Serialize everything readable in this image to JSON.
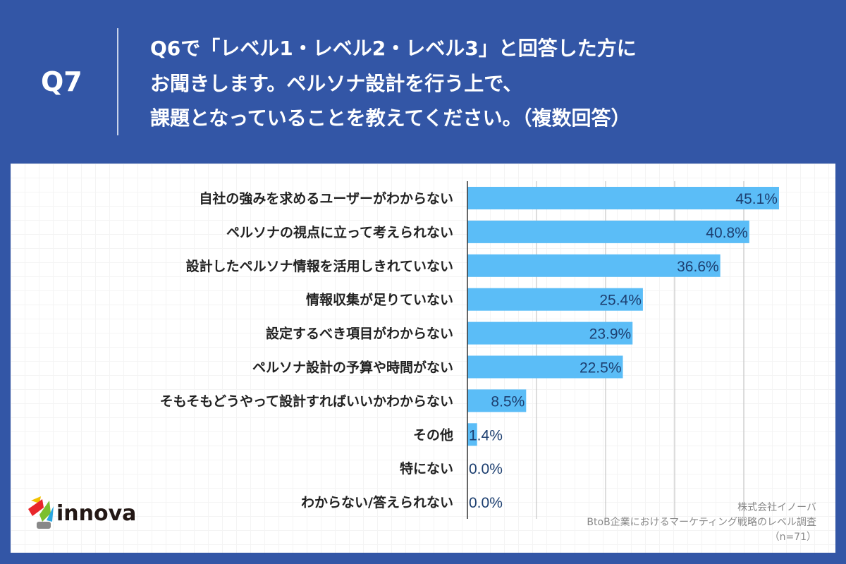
{
  "header": {
    "question_number": "Q7",
    "title": "Q6で「レベル1・レベル2・レベル3」と回答した方に\nお聞きします。ペルソナ設計を行う上で、\n課題となっていることを教えてください。（複数回答）"
  },
  "chart_data": {
    "type": "bar",
    "orientation": "horizontal",
    "categories": [
      "自社の強みを求めるユーザーがわからない",
      "ペルソナの視点に立って考えられない",
      "設計したペルソナ情報を活用しきれていない",
      "情報収集が足りていない",
      "設定するべき項目がわからない",
      "ペルソナ設計の予算や時間がない",
      "そもそもどうやって設計すればいいかわからない",
      "その他",
      "特にない",
      "わからない/答えられない"
    ],
    "values": [
      45.1,
      40.8,
      36.6,
      25.4,
      23.9,
      22.5,
      8.5,
      1.4,
      0.0,
      0.0
    ],
    "value_labels": [
      "45.1%",
      "40.8%",
      "36.6%",
      "25.4%",
      "23.9%",
      "22.5%",
      "8.5%",
      "1.4%",
      "0.0%",
      "0.0%"
    ],
    "xlim": [
      0,
      50
    ],
    "grid": true,
    "bar_color": "#5bbdf7"
  },
  "footer": {
    "company": "株式会社イノーバ",
    "survey": "BtoB企業におけるマーケティング戦略のレベル調査",
    "sample": "（n=71）",
    "logo_text": "innova"
  }
}
